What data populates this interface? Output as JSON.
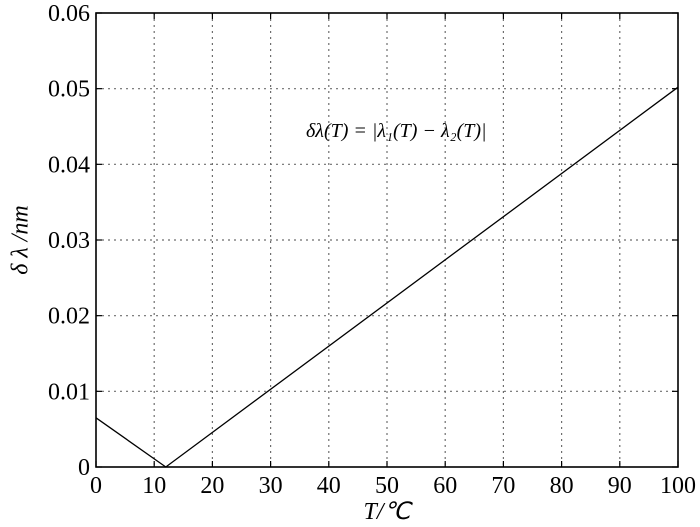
{
  "chart_data": {
    "type": "line",
    "title": "",
    "xlabel": "T/℃",
    "ylabel": "δ λ /nm",
    "xlim": [
      0,
      100
    ],
    "ylim": [
      0,
      0.06
    ],
    "x_ticks": [
      "0",
      "10",
      "20",
      "30",
      "40",
      "50",
      "60",
      "70",
      "80",
      "90",
      "100"
    ],
    "y_ticks": [
      "0",
      "0.01",
      "0.02",
      "0.03",
      "0.04",
      "0.05",
      "0.06"
    ],
    "grid": true,
    "annotation": "δλ(T) = |λ₁(T) − λ₂(T)|",
    "series": [
      {
        "x": [
          0,
          12,
          100
        ],
        "y": [
          0.0065,
          0.0,
          0.0502
        ]
      }
    ]
  }
}
